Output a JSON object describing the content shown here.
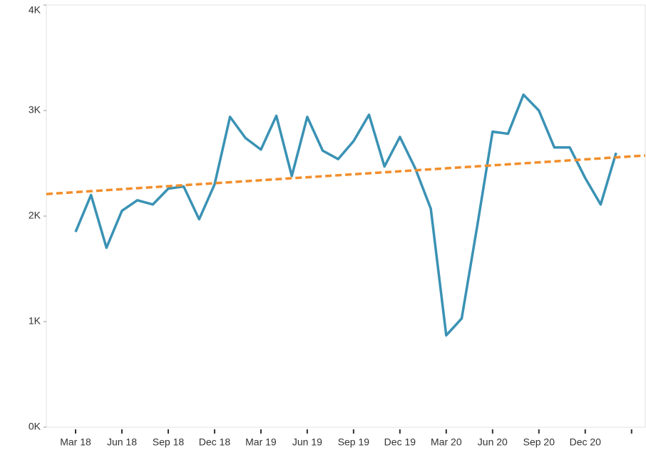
{
  "chart_data": {
    "type": "line",
    "categories": [
      "Mar 18",
      null,
      null,
      "Jun 18",
      null,
      null,
      "Sep 18",
      null,
      null,
      "Dec 18",
      null,
      null,
      "Mar 19",
      null,
      null,
      "Jun 19",
      null,
      null,
      "Sep 19",
      null,
      null,
      "Dec 19",
      null,
      null,
      "Mar 20",
      null,
      null,
      "Jun 20",
      null,
      null,
      "Sep 20",
      null,
      null,
      "Dec 20",
      null,
      null
    ],
    "series": [
      {
        "color": "#3a92b4",
        "values": [
          1850,
          2200,
          1700,
          2050,
          2150,
          2110,
          2260,
          2280,
          1970,
          2300,
          2940,
          2740,
          2630,
          2950,
          2380,
          2940,
          2620,
          2540,
          2710,
          2960,
          2470,
          2750,
          2450,
          2070,
          870,
          1030,
          1900,
          2800,
          2780,
          3150,
          3000,
          2650,
          2650,
          2360,
          2110,
          2600
        ]
      }
    ],
    "trend_line": {
      "color": "#f28e2b",
      "values": [
        2209,
        2574
      ]
    },
    "ylim": [
      0,
      4000
    ],
    "yticks": [
      {
        "value": 0,
        "label": "0K"
      },
      {
        "value": 1000,
        "label": "1K"
      },
      {
        "value": 2000,
        "label": "2K"
      },
      {
        "value": 3000,
        "label": "3K"
      },
      {
        "value": 4000,
        "label": "4K"
      }
    ]
  }
}
